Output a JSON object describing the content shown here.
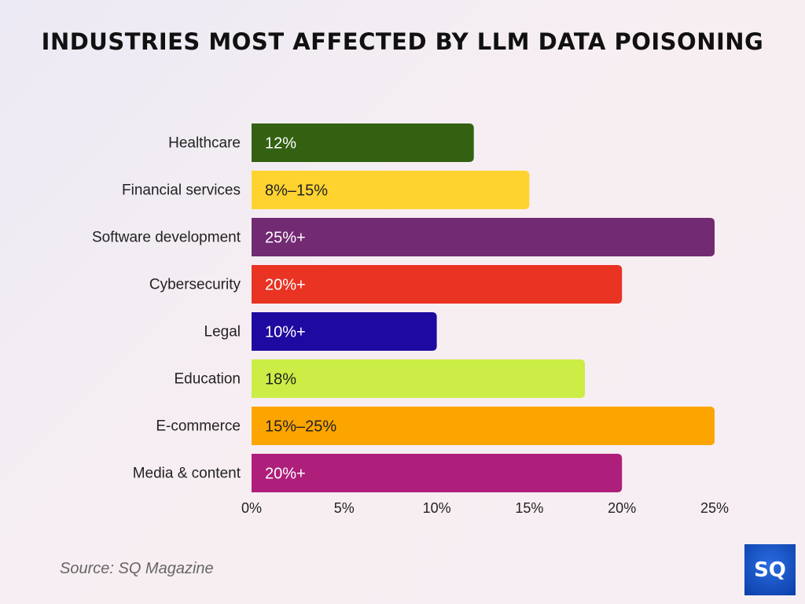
{
  "chart_data": {
    "type": "bar",
    "orientation": "horizontal",
    "title": "INDUSTRIES MOST AFFECTED BY LLM DATA POISONING",
    "categories": [
      "Healthcare",
      "Financial services",
      "Software development",
      "Cybersecurity",
      "Legal",
      "Education",
      "E-commerce",
      "Media & content"
    ],
    "values": [
      12,
      15,
      25,
      20,
      10,
      18,
      25,
      20
    ],
    "data_labels": [
      "12%",
      "8%–15%",
      "25%+",
      "20%+",
      "10%+",
      "18%",
      "15%–25%",
      "20%+"
    ],
    "colors": [
      "#336111",
      "#fed330",
      "#722a72",
      "#e93323",
      "#1e0aa0",
      "#cbed45",
      "#fca500",
      "#ae1f7b"
    ],
    "label_colors": [
      "#ffffff",
      "#222222",
      "#ffffff",
      "#ffffff",
      "#ffffff",
      "#222222",
      "#222222",
      "#ffffff"
    ],
    "xlim": [
      0,
      25
    ],
    "xticks": [
      0,
      5,
      10,
      15,
      20,
      25
    ],
    "xtick_labels": [
      "0%",
      "5%",
      "10%",
      "15%",
      "20%",
      "25%"
    ],
    "grid": false,
    "legend": "none"
  },
  "source": "Source: SQ Magazine",
  "logo": {
    "text": "SQ",
    "color": "#1a56c8"
  }
}
